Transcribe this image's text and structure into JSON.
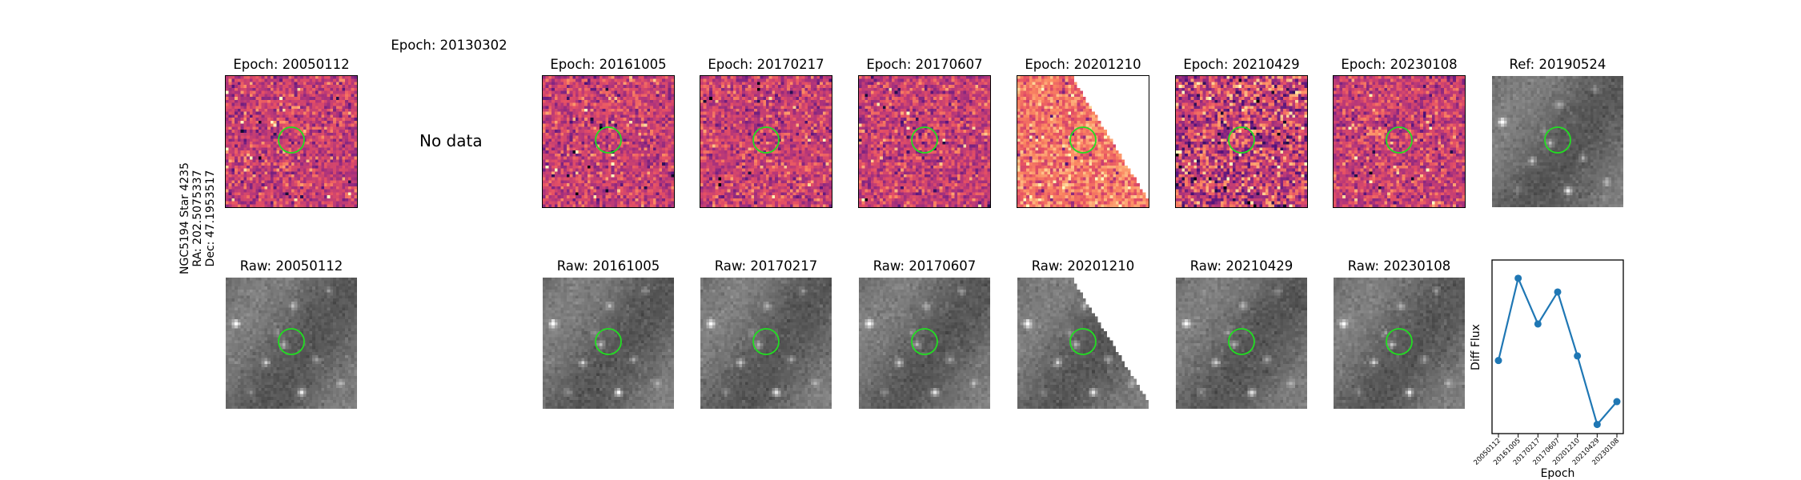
{
  "star_label": {
    "line1": "NGC5194 Star 4235",
    "line2": "RA: 202.5075337",
    "line3": "Dec: 47.1953517"
  },
  "top_row": [
    {
      "title": "Epoch: 20050112",
      "has_data": true,
      "kind": "diff"
    },
    {
      "title": "Epoch: 20130302",
      "has_data": false,
      "no_data_text": "No data"
    },
    {
      "title": "Epoch: 20161005",
      "has_data": true,
      "kind": "diff"
    },
    {
      "title": "Epoch: 20170217",
      "has_data": true,
      "kind": "diff"
    },
    {
      "title": "Epoch: 20170607",
      "has_data": true,
      "kind": "diff"
    },
    {
      "title": "Epoch: 20201210",
      "has_data": true,
      "kind": "diff_partial"
    },
    {
      "title": "Epoch: 20210429",
      "has_data": true,
      "kind": "diff"
    },
    {
      "title": "Epoch: 20230108",
      "has_data": true,
      "kind": "diff"
    },
    {
      "title": "Ref: 20190524",
      "has_data": true,
      "kind": "ref"
    }
  ],
  "bottom_row": [
    {
      "title": "Raw: 20050112",
      "kind": "raw"
    },
    {
      "title": "Raw: 20161005",
      "kind": "raw"
    },
    {
      "title": "Raw: 20170217",
      "kind": "raw"
    },
    {
      "title": "Raw: 20170607",
      "kind": "raw"
    },
    {
      "title": "Raw: 20201210",
      "kind": "raw_partial"
    },
    {
      "title": "Raw: 20210429",
      "kind": "raw"
    },
    {
      "title": "Raw: 20230108",
      "kind": "raw"
    }
  ],
  "colors": {
    "circle": "#22dd22",
    "line": "#1f77b4"
  },
  "chart_data": {
    "type": "line",
    "x": [
      "20050112",
      "20161005",
      "20170217",
      "20170607",
      "20201210",
      "20210429",
      "20230108"
    ],
    "y": [
      0.0,
      0.9,
      0.4,
      0.75,
      0.05,
      -0.7,
      -0.45
    ],
    "ylim": [
      -0.8,
      1.1
    ],
    "xlabel": "Epoch",
    "ylabel": "Diff Flux",
    "yticks_shown": false,
    "marker": "circle"
  }
}
